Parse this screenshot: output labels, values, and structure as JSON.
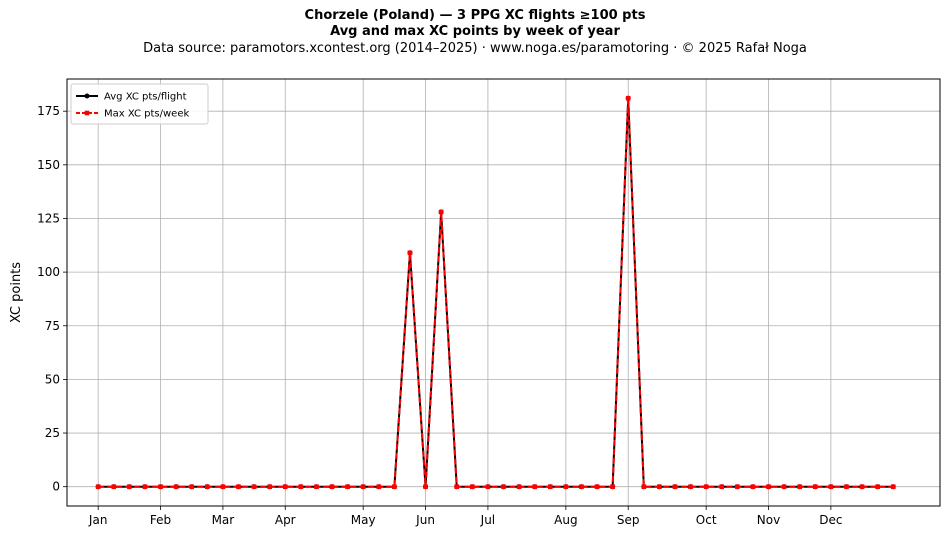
{
  "header": {
    "title": "Chorzele (Poland)  —  3 PPG XC flights ≥100 pts",
    "subtitle": "Avg and max XC points by week of year",
    "source": "Data source: paramotors.xcontest.org (2014–2025)  ·  www.noga.es/paramotoring  ·  © 2025 Rafał Noga"
  },
  "chart_data": {
    "type": "line",
    "title": "Chorzele (Poland)  —  3 PPG XC flights ≥100 pts",
    "subtitle": "Avg and max XC points by week of year",
    "xlabel": "",
    "ylabel": "XC points",
    "x": [
      1,
      2,
      3,
      4,
      5,
      6,
      7,
      8,
      9,
      10,
      11,
      12,
      13,
      14,
      15,
      16,
      17,
      18,
      19,
      20,
      21,
      22,
      23,
      24,
      25,
      26,
      27,
      28,
      29,
      30,
      31,
      32,
      33,
      34,
      35,
      36,
      37,
      38,
      39,
      40,
      41,
      42,
      43,
      44,
      45,
      46,
      47,
      48,
      49,
      50,
      51,
      52
    ],
    "xlim": [
      -1,
      55
    ],
    "ylim": [
      -9,
      190
    ],
    "yticks": [
      0,
      25,
      50,
      75,
      100,
      125,
      150,
      175
    ],
    "month_ticks": [
      {
        "label": "Jan",
        "x": 1
      },
      {
        "label": "Feb",
        "x": 5
      },
      {
        "label": "Mar",
        "x": 9
      },
      {
        "label": "Apr",
        "x": 13
      },
      {
        "label": "May",
        "x": 18
      },
      {
        "label": "Jun",
        "x": 22
      },
      {
        "label": "Jul",
        "x": 26
      },
      {
        "label": "Aug",
        "x": 31
      },
      {
        "label": "Sep",
        "x": 35
      },
      {
        "label": "Oct",
        "x": 40
      },
      {
        "label": "Nov",
        "x": 44
      },
      {
        "label": "Dec",
        "x": 48
      }
    ],
    "grid": true,
    "legend_position": "top-left",
    "series": [
      {
        "name": "Avg XC pts/flight",
        "color": "#000000",
        "style": "solid",
        "marker": "circle",
        "values": [
          0,
          0,
          0,
          0,
          0,
          0,
          0,
          0,
          0,
          0,
          0,
          0,
          0,
          0,
          0,
          0,
          0,
          0,
          0,
          0,
          109,
          0,
          128,
          0,
          0,
          0,
          0,
          0,
          0,
          0,
          0,
          0,
          0,
          0,
          181,
          0,
          0,
          0,
          0,
          0,
          0,
          0,
          0,
          0,
          0,
          0,
          0,
          0,
          0,
          0,
          0,
          0
        ]
      },
      {
        "name": "Max XC pts/week",
        "color": "#ff0000",
        "style": "dashed",
        "marker": "square",
        "values": [
          0,
          0,
          0,
          0,
          0,
          0,
          0,
          0,
          0,
          0,
          0,
          0,
          0,
          0,
          0,
          0,
          0,
          0,
          0,
          0,
          109,
          0,
          128,
          0,
          0,
          0,
          0,
          0,
          0,
          0,
          0,
          0,
          0,
          0,
          181,
          0,
          0,
          0,
          0,
          0,
          0,
          0,
          0,
          0,
          0,
          0,
          0,
          0,
          0,
          0,
          0,
          0
        ]
      }
    ]
  }
}
